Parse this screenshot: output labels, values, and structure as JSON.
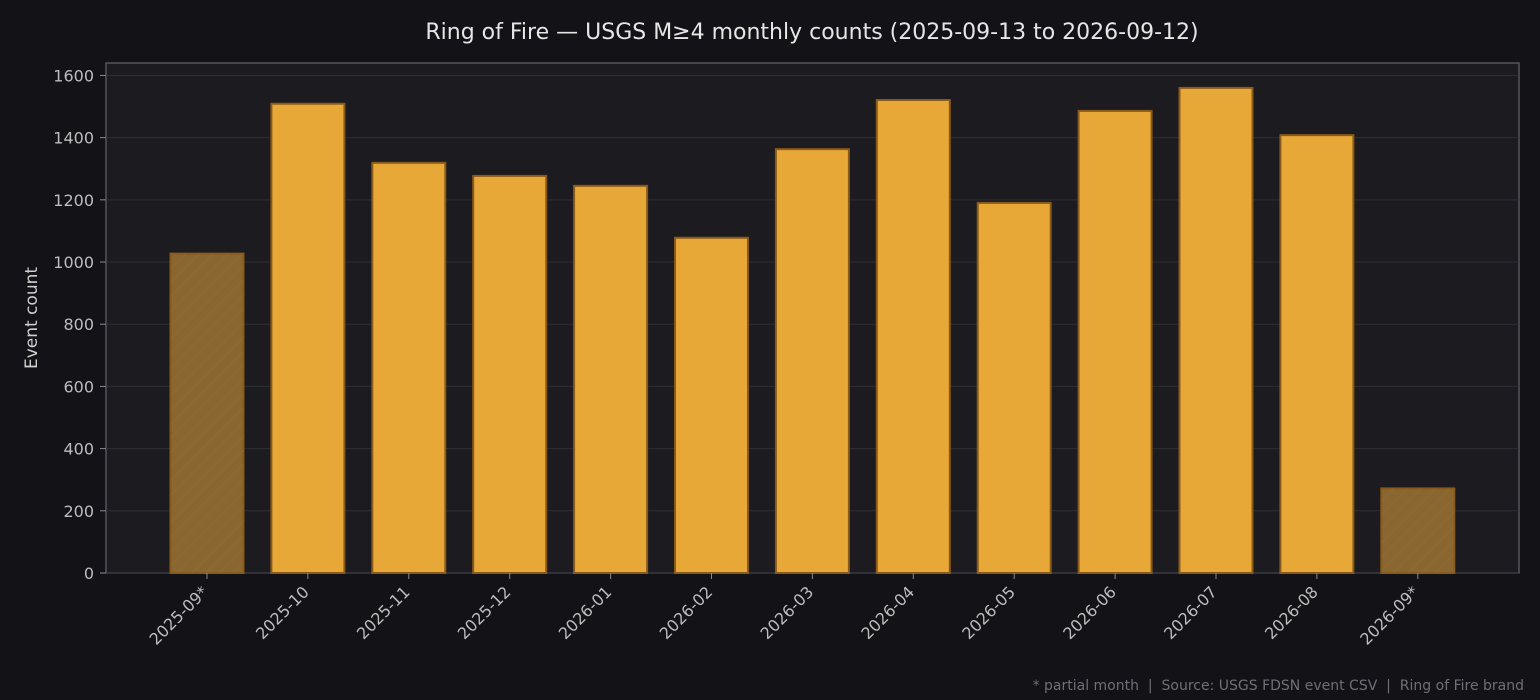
{
  "chart_data": {
    "type": "bar",
    "title": "Ring of Fire — USGS M≥4 monthly counts (2025-09-13 to 2026-09-12)",
    "xlabel": "",
    "ylabel": "Event count",
    "ylim": [
      0,
      1640
    ],
    "yticks": [
      "0",
      "200",
      "400",
      "600",
      "800",
      "1000",
      "1200",
      "1400",
      "1600"
    ],
    "ytick_values": [
      0,
      200,
      400,
      600,
      800,
      1000,
      1200,
      1400,
      1600
    ],
    "categories": [
      "2025-09*",
      "2025-10",
      "2025-11",
      "2025-12",
      "2026-01",
      "2026-02",
      "2026-03",
      "2026-04",
      "2026-05",
      "2026-06",
      "2026-07",
      "2026-08",
      "2026-09*"
    ],
    "values": [
      1027,
      1509,
      1319,
      1277,
      1245,
      1078,
      1363,
      1521,
      1190,
      1486,
      1560,
      1408,
      272
    ],
    "partial": [
      true,
      false,
      false,
      false,
      false,
      false,
      false,
      false,
      false,
      false,
      false,
      false,
      true
    ],
    "grid": true,
    "colors": {
      "bar": "#e8a838",
      "bar_edge": "#8a5a1a",
      "partial_bar": "#8a6630",
      "plot_bg": "#1b1b20",
      "page_bg": "#121217",
      "grid": "#2e2e34",
      "axis": "#55555b"
    },
    "footnote": "* partial month  |  Source: USGS FDSN event CSV  |  Ring of Fire brand"
  }
}
